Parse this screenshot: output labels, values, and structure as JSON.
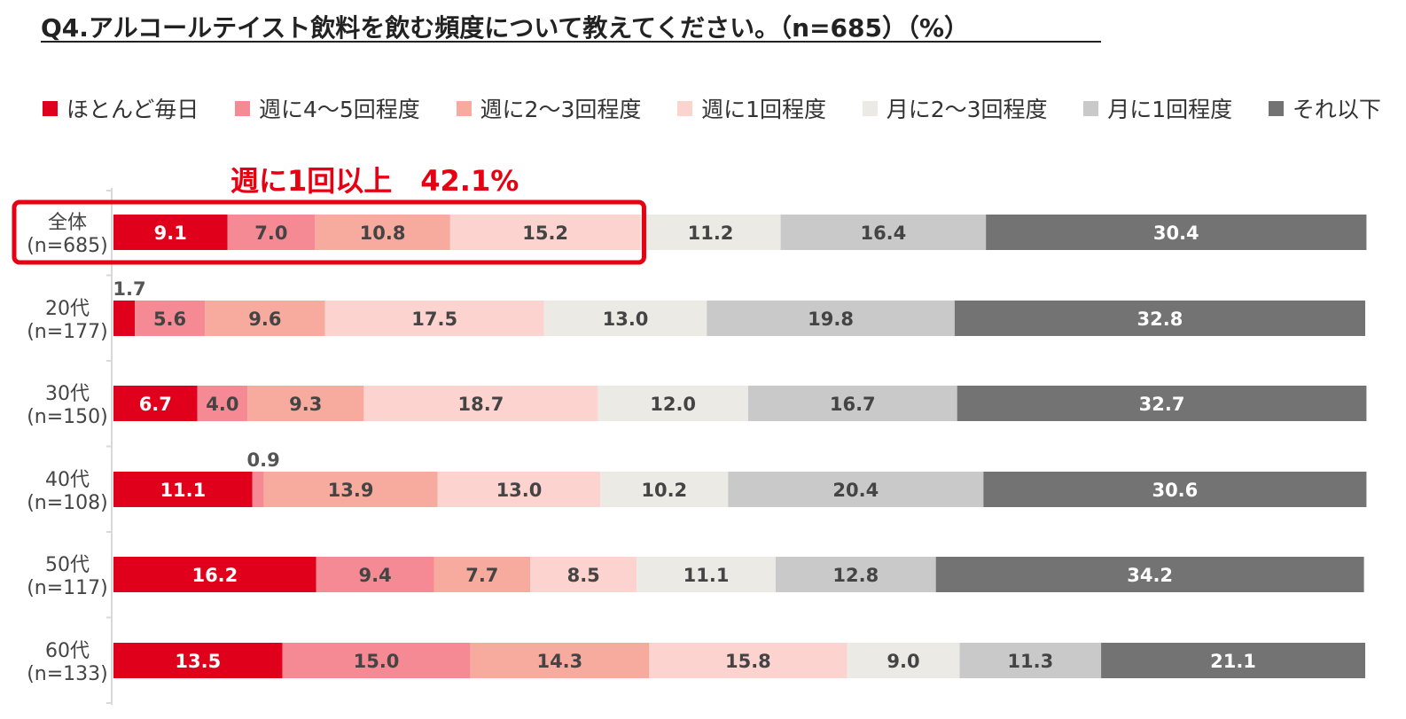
{
  "title": "Q4.アルコールテイスト飲料を飲む頻度について教えてください。（n=685）（%）",
  "callout": "週に1回以上　42.1%",
  "colors": {
    "callout": "#e60012",
    "segments": [
      "#e0001b",
      "#f58a94",
      "#f7aa9e",
      "#fdd3cf",
      "#ebeae5",
      "#c9c9c9",
      "#737373"
    ],
    "label_light": "#ffffff",
    "label_dark": "#444444"
  },
  "chart_data": {
    "type": "bar",
    "orientation": "horizontal",
    "stacked": true,
    "percent": true,
    "categories": [
      [
        "全体",
        "(n=685)"
      ],
      [
        "20代",
        "(n=177)"
      ],
      [
        "30代",
        "(n=150)"
      ],
      [
        "40代",
        "(n=108)"
      ],
      [
        "50代",
        "(n=117)"
      ],
      [
        "60代",
        "(n=133)"
      ]
    ],
    "series": [
      {
        "name": "ほとんど毎日",
        "values": [
          9.1,
          1.7,
          6.7,
          11.1,
          16.2,
          13.5
        ]
      },
      {
        "name": "週に4～5回程度",
        "values": [
          7.0,
          5.6,
          4.0,
          0.9,
          9.4,
          15.0
        ]
      },
      {
        "name": "週に2～3回程度",
        "values": [
          10.8,
          9.6,
          9.3,
          13.9,
          7.7,
          14.3
        ]
      },
      {
        "name": "週に1回程度",
        "values": [
          15.2,
          17.5,
          18.7,
          13.0,
          8.5,
          15.8
        ]
      },
      {
        "name": "月に2～3回程度",
        "values": [
          11.2,
          13.0,
          12.0,
          10.2,
          11.1,
          9.0
        ]
      },
      {
        "name": "月に1回程度",
        "values": [
          16.4,
          19.8,
          16.7,
          20.4,
          12.8,
          11.3
        ]
      },
      {
        "name": "それ以下",
        "values": [
          30.4,
          32.8,
          32.7,
          30.6,
          34.2,
          21.1
        ]
      }
    ],
    "xlim": [
      0,
      100
    ],
    "legend_position": "top",
    "highlight": {
      "category_index": 0,
      "series_range": [
        0,
        3
      ]
    }
  }
}
